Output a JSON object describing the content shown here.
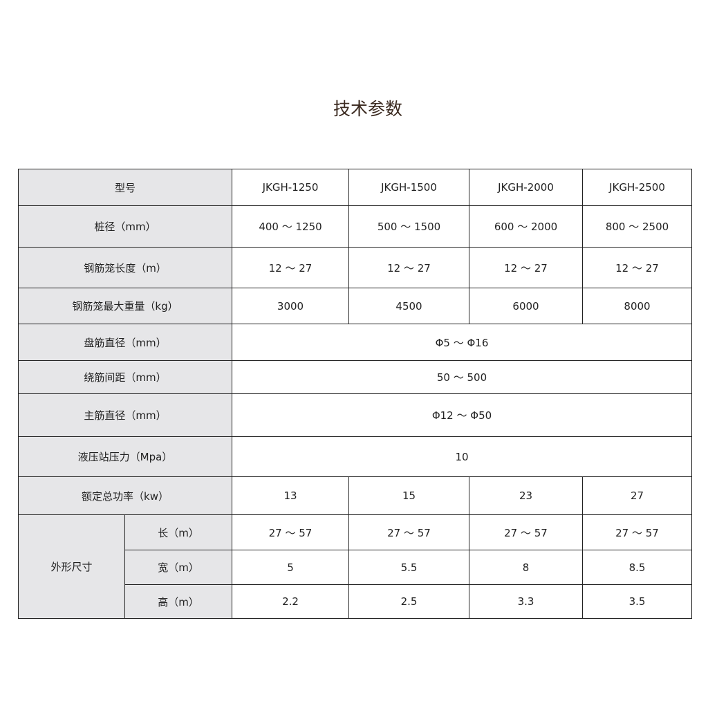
{
  "title": "技术参数",
  "header": {
    "label": "型号",
    "models": [
      "JKGH-1250",
      "JKGH-1500",
      "JKGH-2000",
      "JKGH-2500"
    ]
  },
  "rows": [
    {
      "label": "桩径（mm）",
      "values": [
        "400 ～ 1250",
        "500 ～ 1500",
        "600 ～ 2000",
        "800 ～ 2500"
      ]
    },
    {
      "label": "钢筋笼长度（m）",
      "values": [
        "12 ～ 27",
        "12 ～ 27",
        "12 ～ 27",
        "12 ～ 27"
      ]
    },
    {
      "label": "钢筋笼最大重量（kg）",
      "values": [
        "3000",
        "4500",
        "6000",
        "8000"
      ]
    },
    {
      "label": "盘筋直径（mm）",
      "value": "Φ5 ～ Φ16"
    },
    {
      "label": "绕筋间距（mm）",
      "value": "50 ～ 500"
    },
    {
      "label": "主筋直径（mm）",
      "value": "Φ12 ～ Φ50"
    },
    {
      "label": "液压站压力（Mpa）",
      "value": "10"
    },
    {
      "label": "额定总功率（kw）",
      "values": [
        "13",
        "15",
        "23",
        "27"
      ]
    }
  ],
  "dimensions": {
    "label": "外形尺寸",
    "rows": [
      {
        "label": "长（m）",
        "values": [
          "27 ～ 57",
          "27 ～ 57",
          "27 ～ 57",
          "27 ～ 57"
        ]
      },
      {
        "label": "宽（m）",
        "values": [
          "5",
          "5.5",
          "8",
          "8.5"
        ]
      },
      {
        "label": "高（m）",
        "values": [
          "2.2",
          "2.5",
          "3.3",
          "3.5"
        ]
      }
    ]
  }
}
